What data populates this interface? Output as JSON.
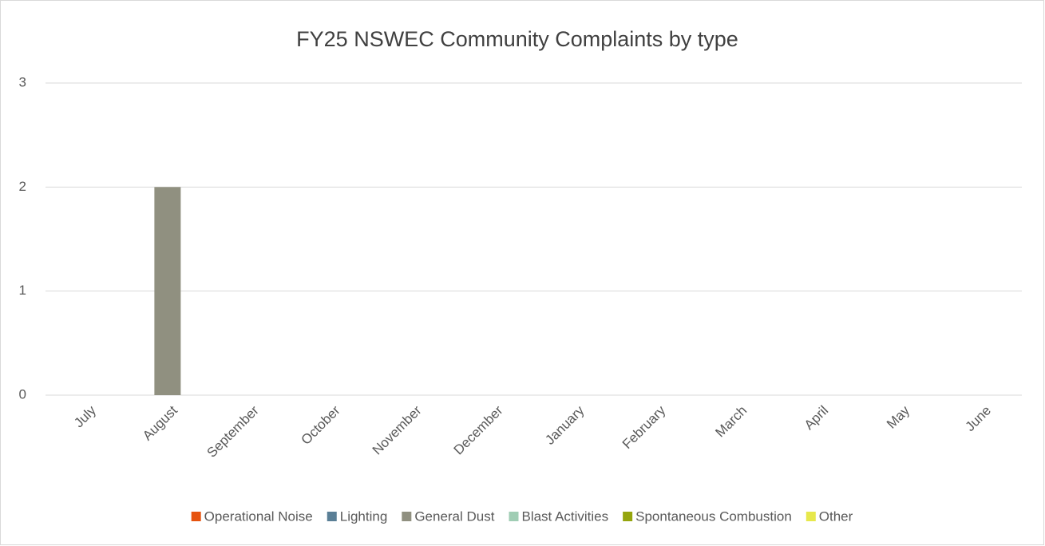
{
  "chart_data": {
    "type": "stacked_bar",
    "title": "FY25 NSWEC Community Complaints by type",
    "categories": [
      "July",
      "August",
      "September",
      "October",
      "November",
      "December",
      "January",
      "February",
      "March",
      "April",
      "May",
      "June"
    ],
    "series": [
      {
        "name": "Operational Noise",
        "color": "#e6530f",
        "values": [
          0,
          0,
          0,
          0,
          0,
          0,
          0,
          0,
          0,
          0,
          0,
          0
        ]
      },
      {
        "name": "Lighting",
        "color": "#5a7f96",
        "values": [
          0,
          0,
          0,
          0,
          0,
          0,
          0,
          0,
          0,
          0,
          0,
          0
        ]
      },
      {
        "name": "General Dust",
        "color": "#909080",
        "values": [
          0,
          2,
          0,
          0,
          0,
          0,
          0,
          0,
          0,
          0,
          0,
          0
        ]
      },
      {
        "name": "Blast Activities",
        "color": "#a0cdb4",
        "values": [
          0,
          0,
          0,
          0,
          0,
          0,
          0,
          0,
          0,
          0,
          0,
          0
        ]
      },
      {
        "name": "Spontaneous Combustion",
        "color": "#95a50e",
        "values": [
          0,
          0,
          0,
          0,
          0,
          0,
          0,
          0,
          0,
          0,
          0,
          0
        ]
      },
      {
        "name": "Other",
        "color": "#e7e84c",
        "values": [
          0,
          0,
          0,
          0,
          0,
          0,
          0,
          0,
          0,
          0,
          0,
          0
        ]
      }
    ],
    "ylim": [
      0,
      3
    ],
    "yticks": [
      0,
      1,
      2,
      3
    ],
    "grid": true,
    "legend": "bottom"
  }
}
